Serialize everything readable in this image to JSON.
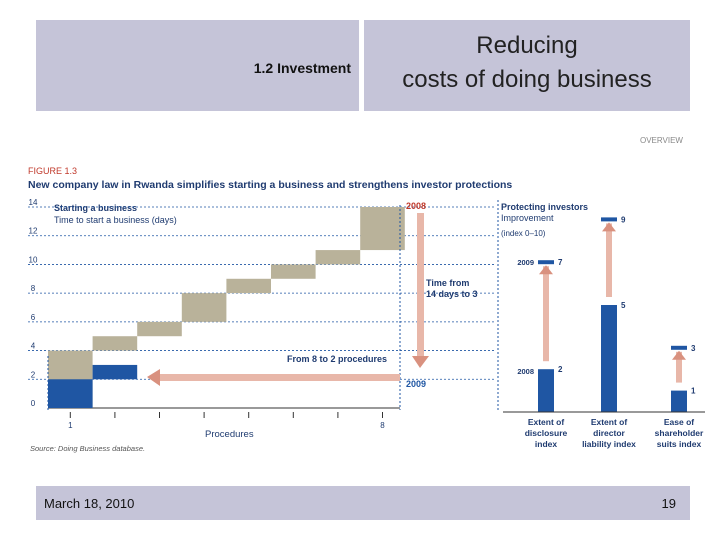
{
  "slide": {
    "section_label": "1.2 Investment",
    "title_line1": "Reducing",
    "title_line2": "costs of doing business",
    "date": "March 18, 2010",
    "page_number": "19"
  },
  "figure": {
    "overview_tag": "OVERVIEW",
    "number": "FIGURE 1.3",
    "title": "New company law in Rwanda simplifies starting a business and strengthens investor protections",
    "source": "Source: Doing Business database."
  },
  "chart_data": [
    {
      "type": "bar",
      "title": "Starting a business",
      "subtitle": "Time to start a business (days)",
      "xlabel": "Procedures",
      "ylabel": "Time to start a business (days)",
      "ylim": [
        0,
        14
      ],
      "yticks": [
        0,
        2,
        4,
        6,
        8,
        10,
        12,
        14
      ],
      "x_tick_labels": [
        {
          "x": 1,
          "label": "1"
        },
        {
          "x": 8,
          "label": "8"
        }
      ],
      "series": [
        {
          "name": "2008",
          "color": "#b9b29a",
          "steps": [
            {
              "procedure": 1,
              "from": 0,
              "to": 4
            },
            {
              "procedure": 2,
              "from": 4,
              "to": 5
            },
            {
              "procedure": 3,
              "from": 5,
              "to": 6
            },
            {
              "procedure": 4,
              "from": 6,
              "to": 8
            },
            {
              "procedure": 5,
              "from": 8,
              "to": 9
            },
            {
              "procedure": 6,
              "from": 9,
              "to": 10
            },
            {
              "procedure": 7,
              "from": 10,
              "to": 11
            },
            {
              "procedure": 8,
              "from": 11,
              "to": 14
            }
          ]
        },
        {
          "name": "2009",
          "color": "#1f56a3",
          "steps": [
            {
              "procedure": 1,
              "from": 0,
              "to": 2
            },
            {
              "procedure": 2,
              "from": 2,
              "to": 3
            }
          ]
        }
      ],
      "annotations": {
        "year_2008": "2008",
        "year_2009": "2009",
        "time_from": "Time from",
        "time_range": "14 days to 3",
        "procedures_change": "From 8 to 2 procedures"
      }
    },
    {
      "type": "bar",
      "title": "Protecting investors",
      "subtitle": "Improvement",
      "range_label": "(index 0–10)",
      "categories": [
        "Extent of disclosure index",
        "Extent of director liability index",
        "Ease of shareholder suits index"
      ],
      "category_lines": [
        [
          "Extent of",
          "disclosure",
          "index"
        ],
        [
          "Extent of",
          "director",
          "liability index"
        ],
        [
          "Ease of",
          "shareholder",
          "suits index"
        ]
      ],
      "series": [
        {
          "name": "2008",
          "values": [
            2,
            5,
            1
          ]
        },
        {
          "name": "2009",
          "values": [
            7,
            9,
            3
          ]
        }
      ],
      "ylim": [
        0,
        10
      ],
      "colors": {
        "bar": "#1f56a3",
        "arrow": "#e8b7a9"
      }
    }
  ]
}
